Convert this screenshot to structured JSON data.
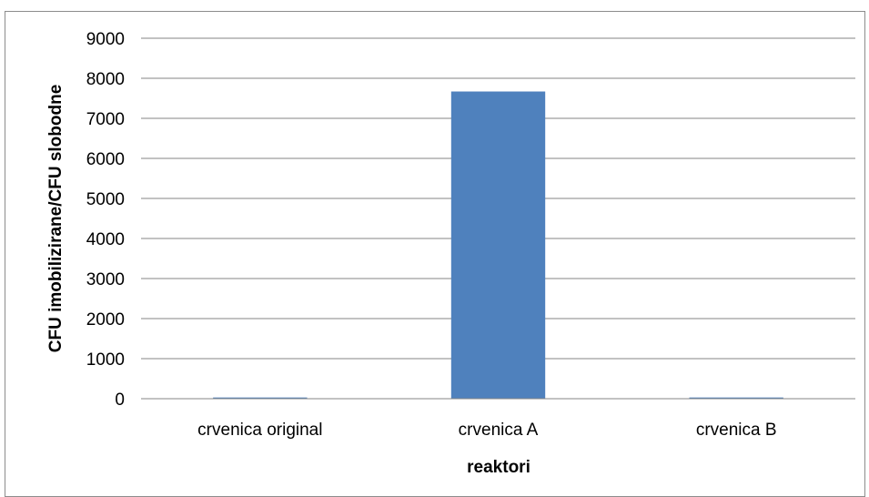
{
  "chart_data": {
    "type": "bar",
    "categories": [
      "crvenica original",
      "crvenica A",
      "crvenica B"
    ],
    "values": [
      30,
      7670,
      30
    ],
    "xlabel": "reaktori",
    "ylabel": "CFU imobilizirane/CFU slobodne",
    "ylim": [
      0,
      9000
    ],
    "yticks": [
      0,
      1000,
      2000,
      3000,
      4000,
      5000,
      6000,
      7000,
      8000,
      9000
    ],
    "bar_color": "#4F81BD",
    "grid": true,
    "legend": "none"
  }
}
